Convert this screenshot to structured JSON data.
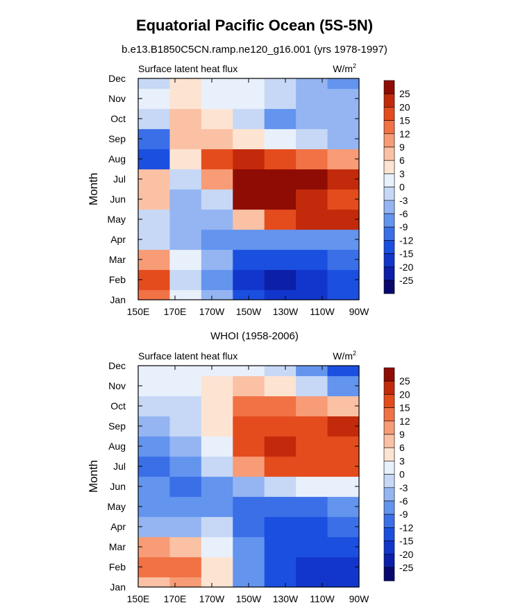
{
  "page": {
    "title": "Equatorial Pacific Ocean (5S-5N)",
    "subtitle": "b.e13.B1850C5CN.ramp.ne120_g16.001 (yrs 1978-1997)",
    "panel2_title": "WHOI (1958-2006)"
  },
  "chart_data": [
    {
      "type": "heatmap",
      "title": "b.e13.B1850C5CN.ramp.ne120_g16.001 (yrs 1978-1997)",
      "left_label": "Surface latent heat flux",
      "units": "W/m",
      "units_exp": "2",
      "xlabel": "",
      "ylabel": "Month",
      "x": [
        "150E",
        "170E",
        "170W",
        "150W",
        "130W",
        "110W",
        "90W"
      ],
      "y": [
        "Jan",
        "Feb",
        "Mar",
        "Apr",
        "May",
        "Jun",
        "Jul",
        "Aug",
        "Sep",
        "Oct",
        "Nov",
        "Dec"
      ],
      "values": [
        [
          12,
          0,
          -6,
          -15,
          -20,
          -20,
          -15
        ],
        [
          15,
          -3,
          -9,
          -20,
          -25,
          -20,
          -15
        ],
        [
          9,
          0,
          -6,
          -15,
          -15,
          -15,
          -12
        ],
        [
          -3,
          -6,
          -9,
          -9,
          -9,
          -9,
          -9
        ],
        [
          -3,
          -6,
          -6,
          6,
          15,
          20,
          20
        ],
        [
          6,
          -6,
          -3,
          25,
          25,
          20,
          15
        ],
        [
          6,
          -3,
          9,
          25,
          25,
          25,
          20
        ],
        [
          -15,
          3,
          15,
          20,
          15,
          12,
          9
        ],
        [
          -12,
          6,
          6,
          3,
          0,
          -3,
          -6
        ],
        [
          -3,
          6,
          3,
          -3,
          -9,
          -6,
          -6
        ],
        [
          0,
          3,
          0,
          0,
          -3,
          -6,
          -6
        ],
        [
          -3,
          3,
          0,
          0,
          -3,
          -6,
          -9
        ]
      ]
    },
    {
      "type": "heatmap",
      "title": "WHOI (1958-2006)",
      "left_label": "Surface latent heat flux",
      "units": "W/m",
      "units_exp": "2",
      "xlabel": "",
      "ylabel": "Month",
      "x": [
        "150E",
        "170E",
        "170W",
        "150W",
        "130W",
        "110W",
        "90W"
      ],
      "y": [
        "Jan",
        "Feb",
        "Mar",
        "Apr",
        "May",
        "Jun",
        "Jul",
        "Aug",
        "Sep",
        "Oct",
        "Nov",
        "Dec"
      ],
      "values": [
        [
          6,
          9,
          3,
          -9,
          -15,
          -20,
          -20
        ],
        [
          12,
          12,
          3,
          -9,
          -15,
          -20,
          -20
        ],
        [
          9,
          6,
          0,
          -9,
          -15,
          -15,
          -15
        ],
        [
          -6,
          -6,
          -3,
          -12,
          -15,
          -15,
          -12
        ],
        [
          -9,
          -9,
          -9,
          -12,
          -12,
          -12,
          -9
        ],
        [
          -9,
          -12,
          -9,
          -6,
          -3,
          0,
          0
        ],
        [
          -12,
          -9,
          -3,
          9,
          15,
          15,
          15
        ],
        [
          -9,
          -6,
          0,
          15,
          20,
          15,
          15
        ],
        [
          -6,
          -3,
          3,
          15,
          15,
          15,
          20
        ],
        [
          -3,
          -3,
          3,
          12,
          12,
          9,
          6
        ],
        [
          0,
          0,
          3,
          6,
          3,
          -3,
          -9
        ],
        [
          0,
          0,
          0,
          0,
          -3,
          -9,
          -15
        ]
      ]
    }
  ],
  "colorbar": {
    "labels": [
      "25",
      "20",
      "15",
      "12",
      "9",
      "6",
      "3",
      "0",
      "-3",
      "-6",
      "-9",
      "-12",
      "-15",
      "-20",
      "-25"
    ],
    "levels": [
      -25,
      -20,
      -15,
      -12,
      -9,
      -6,
      -3,
      0,
      3,
      6,
      9,
      12,
      15,
      20,
      25
    ],
    "colors": [
      "#08086e",
      "#0b1fa8",
      "#1236cc",
      "#1b4fe0",
      "#3a6fe8",
      "#6394ee",
      "#94b5f2",
      "#c6d8f6",
      "#e8f0fb",
      "#fde4d2",
      "#fbc1a4",
      "#f79c76",
      "#f17245",
      "#e44c1e",
      "#c22a0b",
      "#8f0c04"
    ]
  }
}
